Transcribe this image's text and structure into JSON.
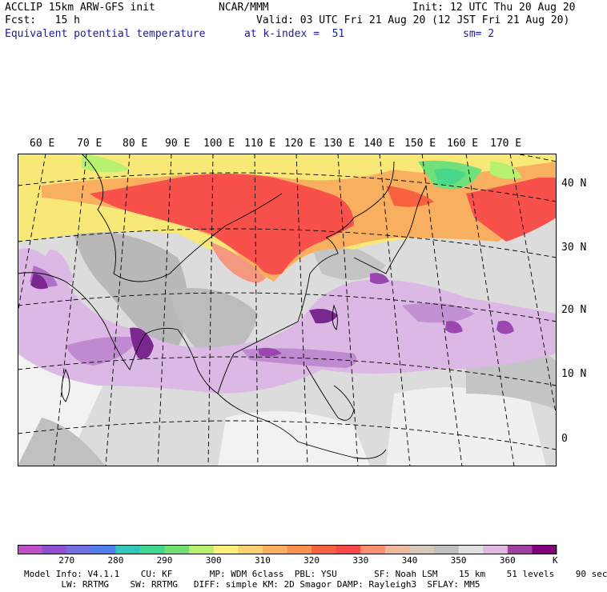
{
  "header": {
    "line1_left": "ACCLIP 15km ARW-GFS init",
    "line1_center": "NCAR/MMM",
    "line1_right": "Init: 12 UTC Thu 20 Aug 20",
    "line2_left": "Fcst:   15 h",
    "line2_right": "Valid: 03 UTC Fri 21 Aug 20 (12 JST Fri 21 Aug 20)",
    "line3_left": "Equivalent potential temperature",
    "line3_center": "at k-index =  51",
    "line3_right": "sm= 2"
  },
  "map": {
    "lon_labels": [
      "60 E",
      "70 E",
      "80 E",
      "90 E",
      "100 E",
      "110 E",
      "120 E",
      "130 E",
      "140 E",
      "150 E",
      "160 E",
      "170 E"
    ],
    "lat_labels": [
      "40 N",
      "30 N",
      "20 N",
      "10 N",
      "0"
    ],
    "colors": {
      "green": "#6fe07a",
      "yellow": "#f8e878",
      "orange": "#f8b060",
      "red": "#f8504a",
      "salmon": "#f49880",
      "gray_dark": "#b8b8b8",
      "gray_light": "#dcdcdc",
      "white": "#f4f4f4",
      "lilac": "#dcb8e4",
      "violet": "#b070c8",
      "purple": "#7a2890"
    }
  },
  "colorbar": {
    "colors": [
      "#c050c8",
      "#9050d0",
      "#7070e0",
      "#5080f0",
      "#30c8b8",
      "#40d890",
      "#70e070",
      "#b8f070",
      "#f8f078",
      "#f8d070",
      "#f8b060",
      "#f89050",
      "#f86040",
      "#f84848",
      "#f89070",
      "#f0b8a0",
      "#d8c8b8",
      "#c0c0c0",
      "#e0e0e0",
      "#e0b8e0",
      "#a040a0",
      "#800080"
    ],
    "tick_labels": [
      "270",
      "280",
      "290",
      "300",
      "310",
      "320",
      "330",
      "340",
      "350",
      "360"
    ],
    "unit": "K"
  },
  "model_info": {
    "line1": "Model Info: V4.1.1    CU: KF       MP: WDM 6class  PBL: YSU       SF: Noah LSM    15 km    51 levels    90 sec",
    "line2": "       LW: RRTMG    SW: RRTMG   DIFF: simple KM: 2D Smagor DAMP: Rayleigh3  SFLAY: MM5"
  }
}
